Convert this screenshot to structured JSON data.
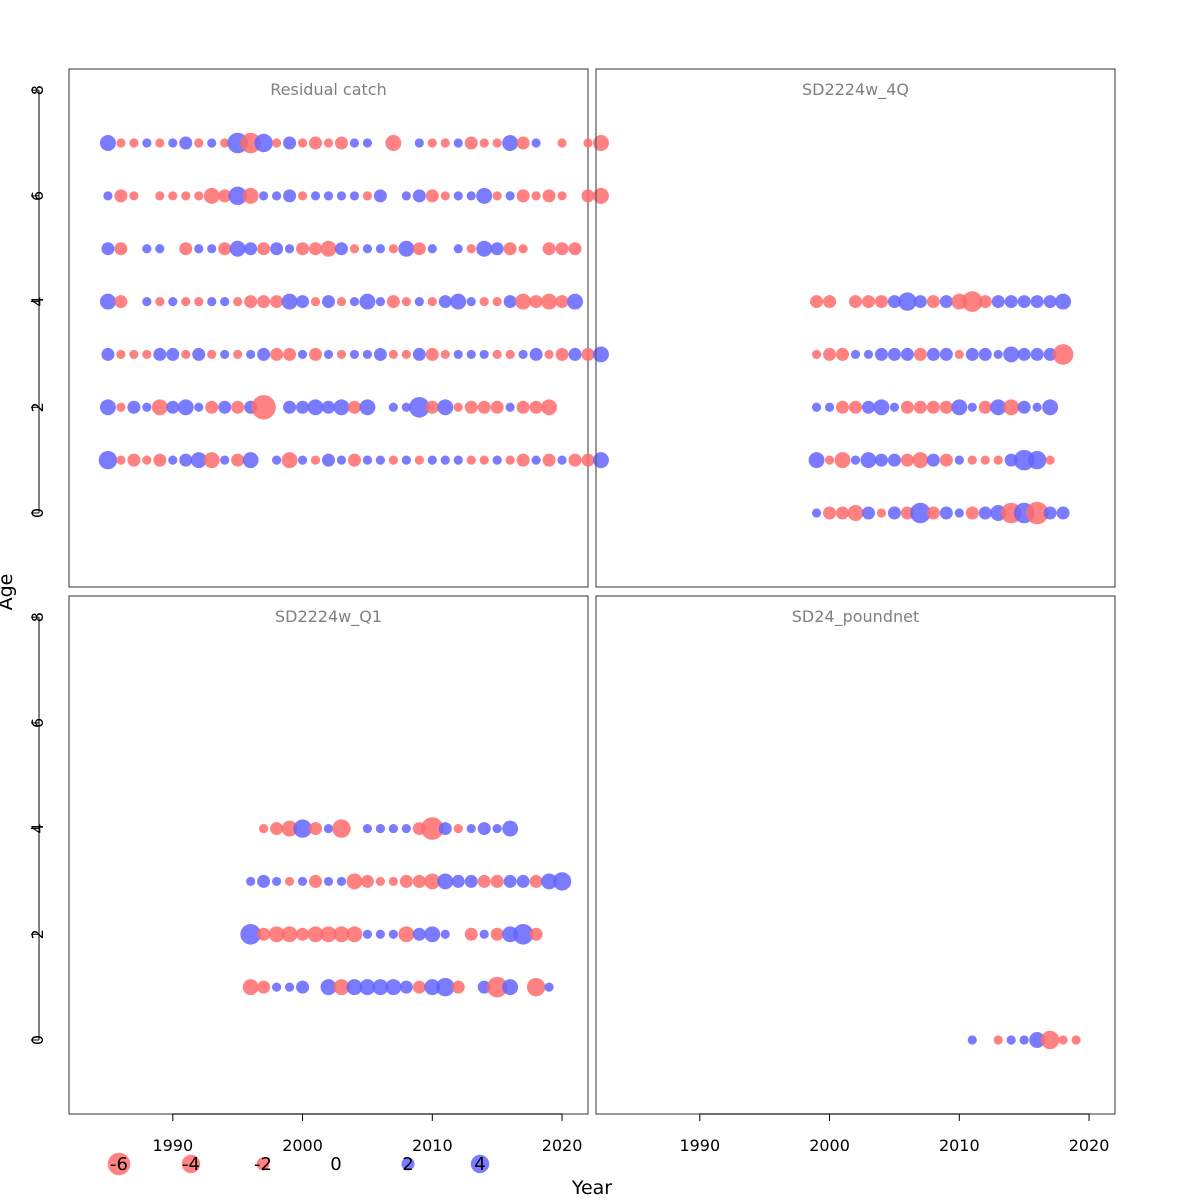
{
  "figure": {
    "xlabel": "Year",
    "ylabel": "Age",
    "x_ticks": [
      1990,
      2000,
      2010,
      2020
    ],
    "y_ticks": [
      0,
      2,
      4,
      6,
      8
    ]
  },
  "legend": {
    "entries": [
      {
        "value": -6,
        "label": "-6"
      },
      {
        "value": -4,
        "label": "-4"
      },
      {
        "value": -2,
        "label": "-2"
      },
      {
        "value": 0,
        "label": "0"
      },
      {
        "value": 2,
        "label": "2"
      },
      {
        "value": 4,
        "label": "4"
      }
    ]
  },
  "colors": {
    "negative": "#FF6B6B",
    "positive": "#6464FF",
    "frame": "#555555",
    "title": "#808080"
  },
  "chart_data": [
    {
      "type": "bubble",
      "title": "Residual catch",
      "xlabel": "Year",
      "ylabel": "Age",
      "xlim": [
        1982,
        2022
      ],
      "ylim": [
        -1.4,
        8.4
      ],
      "rows": [
        {
          "age": 7,
          "start": 1985,
          "r": [
            3,
            -1,
            -1,
            1,
            -1,
            1,
            2,
            -1,
            1,
            -1,
            5,
            -5,
            4,
            -1,
            2,
            -1,
            -2,
            -1,
            -2,
            1,
            1,
            0,
            -3,
            0,
            1,
            -1,
            -1,
            1,
            -2,
            -1,
            -1,
            3,
            -2,
            1,
            0,
            -1,
            0,
            -1,
            -3
          ]
        },
        {
          "age": 6,
          "start": 1985,
          "r": [
            1,
            -2,
            -1,
            0,
            -1,
            -1,
            -1,
            -1,
            -3,
            -2,
            4,
            -3,
            1,
            1,
            2,
            -1,
            1,
            1,
            1,
            1,
            -1,
            2,
            0,
            1,
            2,
            -2,
            -1,
            1,
            1,
            3,
            -1,
            1,
            -2,
            -1,
            -2,
            -1,
            0,
            -2,
            -3
          ]
        },
        {
          "age": 5,
          "start": 1985,
          "r": [
            2,
            -2,
            0,
            1,
            1,
            0,
            -2,
            1,
            1,
            -2,
            3,
            2,
            -2,
            2,
            1,
            -2,
            -2,
            -3,
            2,
            -1,
            1,
            1,
            -1,
            3,
            -2,
            1,
            0,
            1,
            -1,
            3,
            2,
            -2,
            -1,
            0,
            -2,
            -2,
            -2
          ]
        },
        {
          "age": 4,
          "start": 1985,
          "r": [
            3,
            -2,
            0,
            1,
            -1,
            1,
            -1,
            -1,
            1,
            1,
            -1,
            -2,
            -2,
            -2,
            3,
            2,
            -1,
            2,
            -1,
            1,
            3,
            1,
            -2,
            -1,
            1,
            -1,
            2,
            3,
            1,
            -1,
            -1,
            2,
            -3,
            -2,
            -3,
            -2,
            3
          ]
        },
        {
          "age": 3,
          "start": 1985,
          "r": [
            2,
            -1,
            -1,
            -1,
            2,
            2,
            -1,
            2,
            -1,
            1,
            -1,
            1,
            2,
            -2,
            -2,
            1,
            -2,
            1,
            -1,
            1,
            1,
            2,
            -1,
            -1,
            2,
            -2,
            -1,
            1,
            1,
            1,
            -1,
            -1,
            1,
            2,
            -1,
            -2,
            2,
            -2,
            3
          ]
        },
        {
          "age": 2,
          "start": 1985,
          "r": [
            3,
            -1,
            2,
            1,
            -3,
            2,
            3,
            1,
            -2,
            2,
            -2,
            2,
            -7,
            0,
            2,
            2,
            3,
            2,
            3,
            -2,
            3,
            0,
            1,
            1,
            5,
            -2,
            3,
            -1,
            -2,
            -2,
            -2,
            1,
            -2,
            -2,
            -3
          ]
        },
        {
          "age": 1,
          "start": 1985,
          "r": [
            4,
            -1,
            -2,
            -1,
            -2,
            1,
            2,
            3,
            -3,
            1,
            -2,
            3,
            0,
            1,
            -3,
            1,
            -1,
            2,
            1,
            -2,
            1,
            1,
            -1,
            1,
            -1,
            1,
            1,
            1,
            -1,
            -1,
            1,
            -1,
            -2,
            1,
            -2,
            1,
            -2,
            -2,
            3
          ]
        }
      ]
    },
    {
      "type": "bubble",
      "title": "SD2224w_4Q",
      "xlabel": "Year",
      "ylabel": "Age",
      "xlim": [
        1982,
        2022
      ],
      "ylim": [
        -1.4,
        8.4
      ],
      "rows": [
        {
          "age": 4,
          "start": 1999,
          "r": [
            -2,
            -2,
            0,
            -2,
            -2,
            -2,
            2,
            4,
            2,
            -2,
            2,
            -3,
            -5,
            -2,
            2,
            2,
            2,
            2,
            2,
            3
          ]
        },
        {
          "age": 3,
          "start": 1999,
          "r": [
            -1,
            -2,
            -2,
            1,
            1,
            2,
            2,
            2,
            -2,
            2,
            2,
            -1,
            2,
            2,
            1,
            3,
            2,
            2,
            2,
            -5
          ]
        },
        {
          "age": 2,
          "start": 1999,
          "r": [
            1,
            1,
            -2,
            -2,
            2,
            3,
            1,
            -2,
            -2,
            -2,
            -2,
            3,
            1,
            -2,
            3,
            -3,
            2,
            1,
            3
          ]
        },
        {
          "age": 1,
          "start": 1999,
          "r": [
            3,
            -1,
            -3,
            1,
            3,
            2,
            2,
            -2,
            -3,
            2,
            -2,
            1,
            -1,
            -1,
            -1,
            2,
            5,
            4,
            -1
          ]
        },
        {
          "age": 0,
          "start": 1999,
          "r": [
            1,
            -2,
            -2,
            -3,
            2,
            -1,
            2,
            -2,
            5,
            -2,
            2,
            1,
            -2,
            2,
            3,
            -5,
            5,
            -6,
            2,
            2
          ]
        }
      ]
    },
    {
      "type": "bubble",
      "title": "SD2224w_Q1",
      "xlabel": "Year",
      "ylabel": "Age",
      "xlim": [
        1982,
        2022
      ],
      "ylim": [
        -1.4,
        8.4
      ],
      "rows": [
        {
          "age": 4,
          "start": 1996,
          "r": [
            0,
            -1,
            -2,
            -3,
            4,
            -2,
            1,
            -4,
            0,
            1,
            1,
            1,
            1,
            -2,
            -6,
            2,
            -1,
            1,
            2,
            1,
            3,
            0
          ]
        },
        {
          "age": 3,
          "start": 1996,
          "r": [
            1,
            2,
            1,
            -1,
            1,
            -2,
            1,
            1,
            -3,
            -2,
            -1,
            -1,
            -2,
            -2,
            -3,
            3,
            2,
            2,
            -2,
            -2,
            2,
            2,
            -2,
            3,
            4
          ]
        },
        {
          "age": 2,
          "start": 1996,
          "r": [
            5,
            -2,
            -3,
            -3,
            -2,
            -3,
            -3,
            -3,
            -3,
            1,
            1,
            1,
            -3,
            2,
            3,
            1,
            0,
            -2,
            1,
            -2,
            3,
            5,
            -2
          ]
        },
        {
          "age": 1,
          "start": 1996,
          "r": [
            -3,
            -2,
            1,
            1,
            2,
            0,
            3,
            -3,
            3,
            3,
            3,
            3,
            2,
            -2,
            3,
            4,
            -2,
            0,
            2,
            -5,
            3,
            0,
            -4,
            1
          ]
        }
      ]
    },
    {
      "type": "bubble",
      "title": "SD24_poundnet",
      "xlabel": "Year",
      "ylabel": "Age",
      "xlim": [
        1982,
        2022
      ],
      "ylim": [
        -1.4,
        8.4
      ],
      "rows": [
        {
          "age": 0,
          "start": 2011,
          "r": [
            1,
            0,
            -1,
            1,
            1,
            3,
            -4,
            -1,
            -1
          ]
        }
      ]
    }
  ]
}
